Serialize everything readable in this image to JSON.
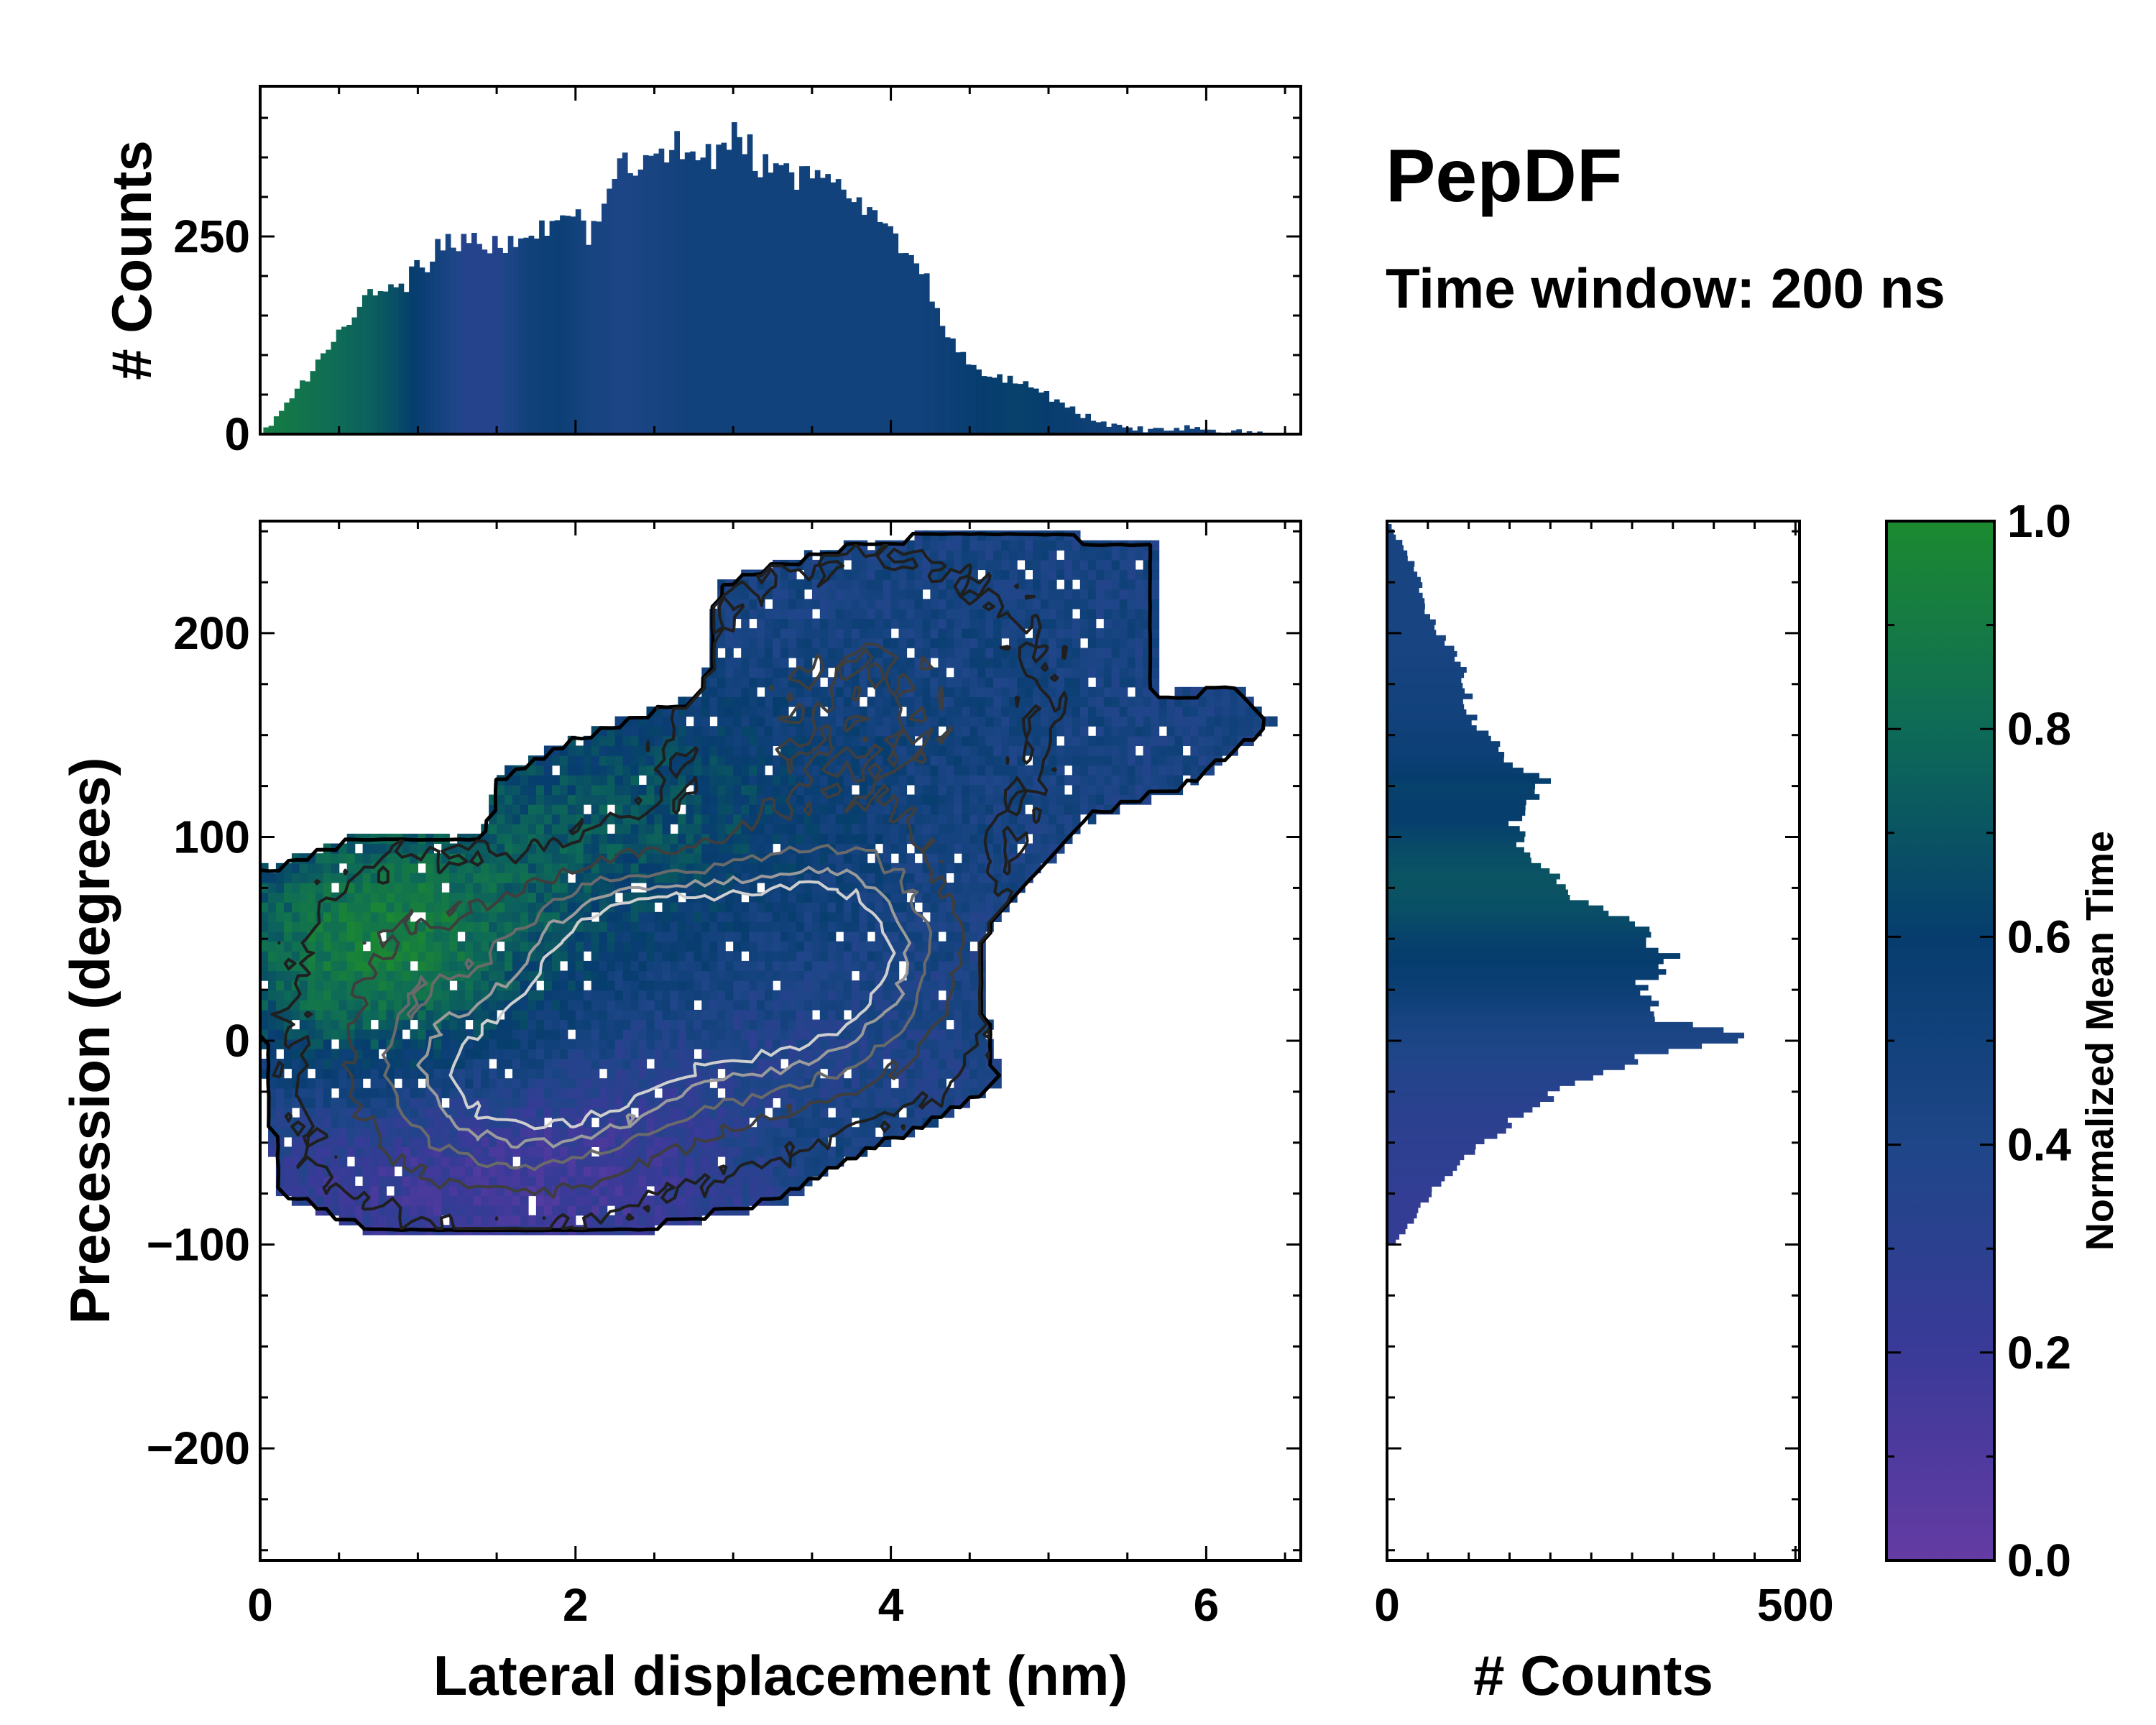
{
  "chart_data": {
    "type": "heatmap",
    "title": "PepDF",
    "subtitle": "Time window: 200 ns",
    "joint": {
      "xlabel": "Lateral displacement (nm)",
      "ylabel": "Precession (degrees)",
      "xlim": [
        0,
        6.6
      ],
      "ylim": [
        -255,
        255
      ],
      "xticks": [
        0,
        2,
        4,
        6
      ],
      "yticks": [
        -200,
        -100,
        0,
        100,
        200
      ],
      "xtick_labels": [
        "0",
        "2",
        "4",
        "6"
      ],
      "ytick_labels": [
        "−200",
        "−100",
        "0",
        "100",
        "200"
      ],
      "color_value": "normalized mean time (0–1)",
      "regions": [
        {
          "name": "green high-time lobe",
          "x": [
            0.0,
            1.9
          ],
          "y": [
            -10,
            95
          ],
          "value": 0.9
        },
        {
          "name": "upper-left diagonal band",
          "x": [
            1.5,
            3.5
          ],
          "y": [
            60,
            160
          ],
          "value": 0.6
        },
        {
          "name": "central dense core",
          "x": [
            1.0,
            4.5
          ],
          "y": [
            -60,
            90
          ],
          "value": 0.35
        },
        {
          "name": "lower violet region",
          "x": [
            0.1,
            3.5
          ],
          "y": [
            -95,
            -10
          ],
          "value": 0.15
        },
        {
          "name": "upper-right extension",
          "x": [
            3.0,
            6.4
          ],
          "y": [
            80,
            250
          ],
          "value": 0.45
        }
      ],
      "density_peaks": [
        {
          "x": 2.4,
          "y": 45
        },
        {
          "x": 1.8,
          "y": -15
        },
        {
          "x": 3.3,
          "y": 15
        },
        {
          "x": 3.6,
          "y": 55
        }
      ]
    },
    "top_hist": {
      "ylabel": "# Counts",
      "ylim": [
        0,
        440
      ],
      "yticks": [
        0,
        250
      ],
      "ytick_labels": [
        "0",
        "250"
      ],
      "x_knots": [
        0.05,
        0.3,
        0.5,
        0.7,
        0.9,
        1.1,
        1.3,
        1.5,
        1.7,
        1.9,
        2.1,
        2.3,
        2.5,
        2.7,
        2.9,
        3.0,
        3.2,
        3.4,
        3.6,
        3.8,
        4.0,
        4.2,
        4.4,
        4.6,
        4.8,
        5.0,
        5.2,
        5.4,
        5.6,
        5.8,
        6.0,
        6.2,
        6.35
      ],
      "count_knots": [
        5,
        70,
        130,
        170,
        190,
        225,
        250,
        245,
        255,
        270,
        260,
        335,
        355,
        360,
        365,
        385,
        340,
        330,
        325,
        300,
        270,
        200,
        110,
        75,
        65,
        50,
        25,
        12,
        5,
        8,
        6,
        3,
        0
      ],
      "color_knots": [
        0.9,
        0.85,
        0.8,
        0.75,
        0.65,
        0.5,
        0.35,
        0.35,
        0.5,
        0.55,
        0.45,
        0.42,
        0.45,
        0.5,
        0.5,
        0.5,
        0.5,
        0.5,
        0.5,
        0.5,
        0.5,
        0.5,
        0.55,
        0.6,
        0.62,
        0.6,
        0.55,
        0.5,
        0.5,
        0.5,
        0.5,
        0.5,
        0.5
      ]
    },
    "right_hist": {
      "xlabel": "# Counts",
      "xlim": [
        0,
        505
      ],
      "xticks": [
        0,
        500
      ],
      "xtick_labels": [
        "0",
        "500"
      ],
      "y_knots": [
        -100,
        -80,
        -60,
        -40,
        -20,
        -5,
        0,
        10,
        25,
        40,
        50,
        65,
        80,
        95,
        110,
        125,
        140,
        160,
        175,
        190,
        210,
        230,
        245,
        252
      ],
      "count_knots": [
        10,
        45,
        90,
        150,
        230,
        330,
        460,
        330,
        310,
        340,
        330,
        250,
        210,
        160,
        160,
        195,
        140,
        100,
        95,
        85,
        50,
        35,
        15,
        5
      ],
      "color_knots": [
        0.25,
        0.25,
        0.28,
        0.3,
        0.35,
        0.4,
        0.42,
        0.45,
        0.55,
        0.6,
        0.62,
        0.68,
        0.7,
        0.66,
        0.6,
        0.62,
        0.55,
        0.5,
        0.48,
        0.45,
        0.45,
        0.45,
        0.45,
        0.45
      ]
    },
    "colorbar": {
      "label": "Normalized Mean Time",
      "range": [
        0,
        1
      ],
      "ticks": [
        0.0,
        0.2,
        0.4,
        0.6,
        0.8,
        1.0
      ],
      "tick_labels": [
        "0.0",
        "0.2",
        "0.4",
        "0.6",
        "0.8",
        "1.0"
      ],
      "colors": [
        "#643ba3",
        "#3a3a98",
        "#1e4688",
        "#063d6e",
        "#0e6b57",
        "#1c8a30"
      ]
    }
  }
}
